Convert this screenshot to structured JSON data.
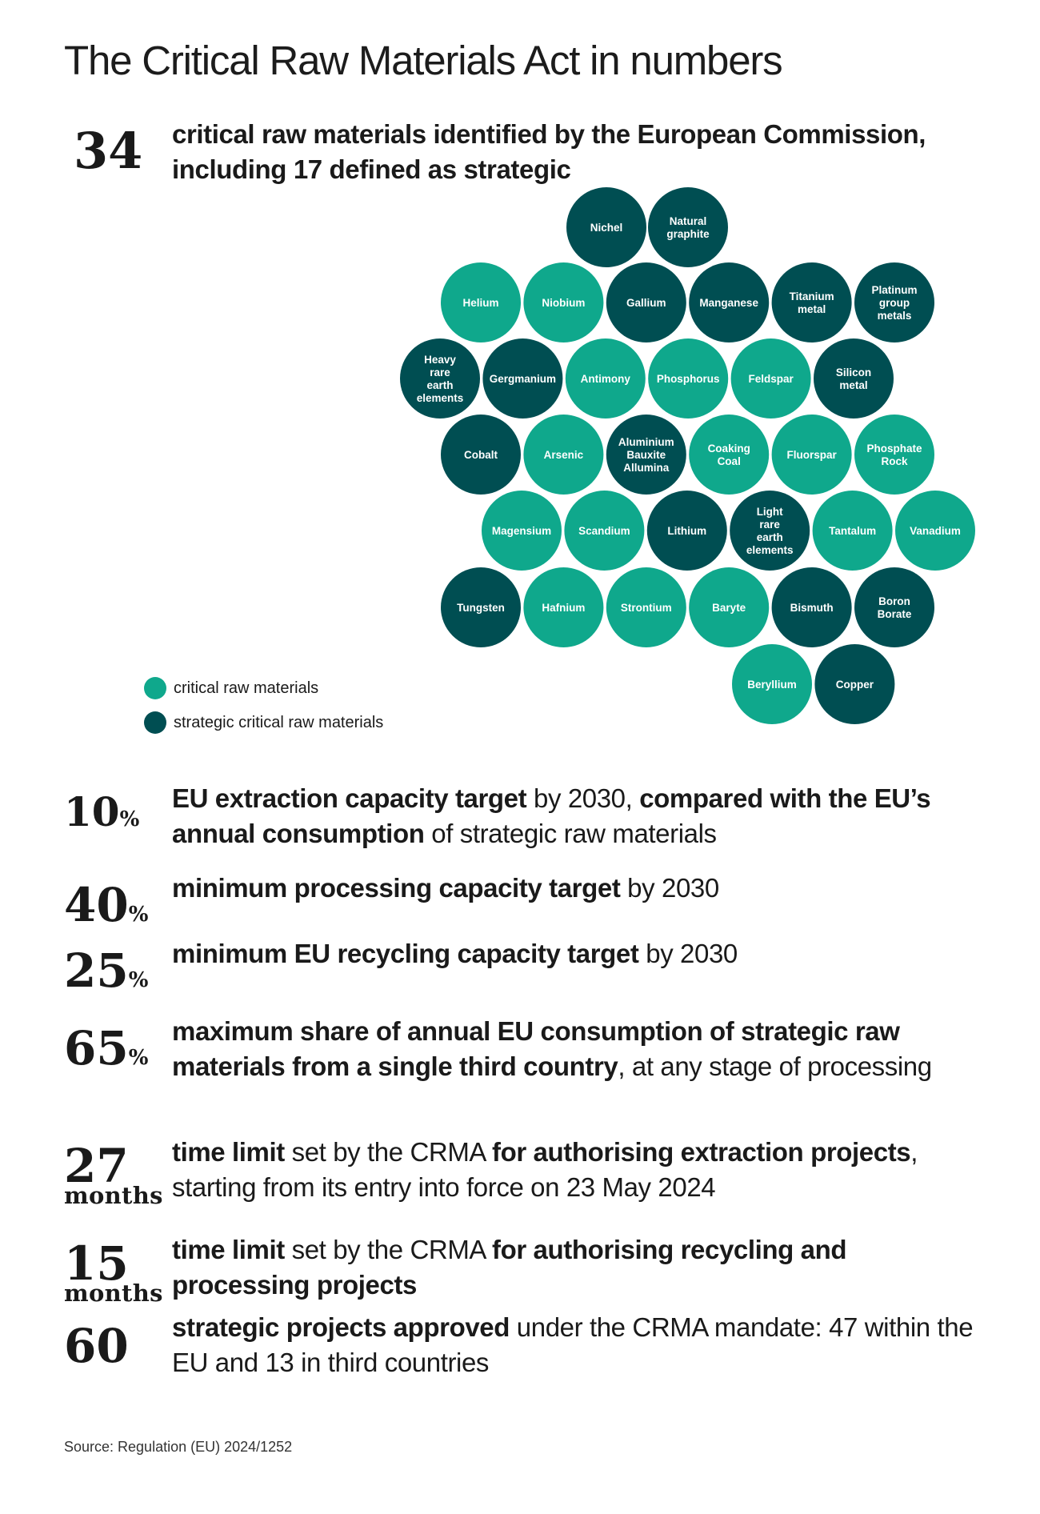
{
  "title": "The Critical Raw Materials Act in numbers",
  "colors": {
    "critical": "#0fa88c",
    "strategic": "#004e52",
    "bubble_text": "#ffffff"
  },
  "intro": {
    "number": "34",
    "line1": "critical raw materials identified by the European Commission,",
    "line2": "including 17 defined as strategic"
  },
  "materials": [
    {
      "name": "Nichel",
      "type": "strategic",
      "row": 0,
      "col": 0
    },
    {
      "name": "Natural graphite",
      "type": "strategic",
      "row": 0,
      "col": 1
    },
    {
      "name": "Helium",
      "type": "critical",
      "row": 1,
      "col": 0
    },
    {
      "name": "Niobium",
      "type": "critical",
      "row": 1,
      "col": 1
    },
    {
      "name": "Gallium",
      "type": "strategic",
      "row": 1,
      "col": 2
    },
    {
      "name": "Manganese",
      "type": "strategic",
      "row": 1,
      "col": 3
    },
    {
      "name": "Titanium metal",
      "type": "strategic",
      "row": 1,
      "col": 4
    },
    {
      "name": "Platinum group metals",
      "type": "strategic",
      "row": 1,
      "col": 5
    },
    {
      "name": "Heavy rare earth elements",
      "type": "strategic",
      "row": 2,
      "col": 0
    },
    {
      "name": "Gergmanium",
      "type": "strategic",
      "row": 2,
      "col": 1
    },
    {
      "name": "Antimony",
      "type": "critical",
      "row": 2,
      "col": 2
    },
    {
      "name": "Phosphorus",
      "type": "critical",
      "row": 2,
      "col": 3
    },
    {
      "name": "Feldspar",
      "type": "critical",
      "row": 2,
      "col": 4
    },
    {
      "name": "Silicon metal",
      "type": "strategic",
      "row": 2,
      "col": 5
    },
    {
      "name": "Cobalt",
      "type": "strategic",
      "row": 3,
      "col": 0
    },
    {
      "name": "Arsenic",
      "type": "critical",
      "row": 3,
      "col": 1
    },
    {
      "name": "Aluminium Bauxite Allumina",
      "type": "strategic",
      "row": 3,
      "col": 2
    },
    {
      "name": "Coaking Coal",
      "type": "critical",
      "row": 3,
      "col": 3
    },
    {
      "name": "Fluorspar",
      "type": "critical",
      "row": 3,
      "col": 4
    },
    {
      "name": "Phosphate Rock",
      "type": "critical",
      "row": 3,
      "col": 5
    },
    {
      "name": "Magensium",
      "type": "critical",
      "row": 4,
      "col": 0
    },
    {
      "name": "Scandium",
      "type": "critical",
      "row": 4,
      "col": 1
    },
    {
      "name": "Lithium",
      "type": "strategic",
      "row": 4,
      "col": 2
    },
    {
      "name": "Light rare earth elements",
      "type": "strategic",
      "row": 4,
      "col": 3
    },
    {
      "name": "Tantalum",
      "type": "critical",
      "row": 4,
      "col": 4
    },
    {
      "name": "Vanadium",
      "type": "critical",
      "row": 4,
      "col": 5
    },
    {
      "name": "Tungsten",
      "type": "strategic",
      "row": 5,
      "col": 0
    },
    {
      "name": "Hafnium",
      "type": "critical",
      "row": 5,
      "col": 1
    },
    {
      "name": "Strontium",
      "type": "critical",
      "row": 5,
      "col": 2
    },
    {
      "name": "Baryte",
      "type": "critical",
      "row": 5,
      "col": 3
    },
    {
      "name": "Bismuth",
      "type": "strategic",
      "row": 5,
      "col": 4
    },
    {
      "name": "Boron Borate",
      "type": "strategic",
      "row": 5,
      "col": 5
    },
    {
      "name": "Beryllium",
      "type": "critical",
      "row": 6,
      "col": 0
    },
    {
      "name": "Copper",
      "type": "strategic",
      "row": 6,
      "col": 1
    }
  ],
  "legend": {
    "critical_label": "critical raw materials",
    "strategic_label": "strategic critical raw materials"
  },
  "stats": [
    {
      "number": "10",
      "unit": "%",
      "line1": [
        {
          "t": "EU extraction capacity target",
          "b": true
        },
        {
          "t": " by 2030, ",
          "b": false
        },
        {
          "t": "compared with the EU’s",
          "b": true
        }
      ],
      "line2": [
        {
          "t": "annual consumption",
          "b": true
        },
        {
          "t": " of strategic raw materials",
          "b": false
        }
      ]
    },
    {
      "number": "40",
      "unit": "%",
      "line1": [
        {
          "t": "minimum processing capacity target",
          "b": true
        },
        {
          "t": " by 2030",
          "b": false
        }
      ],
      "line2": []
    },
    {
      "number": "25",
      "unit": "%",
      "line1": [
        {
          "t": "minimum EU recycling capacity target",
          "b": true
        },
        {
          "t": " by 2030",
          "b": false
        }
      ],
      "line2": []
    },
    {
      "number": "65",
      "unit": "%",
      "line1": [
        {
          "t": "maximum share of annual EU consumption of strategic raw",
          "b": true
        }
      ],
      "line2": [
        {
          "t": "materials from a single third country",
          "b": true
        },
        {
          "t": ", at any stage of processing",
          "b": false
        }
      ]
    },
    {
      "number": "27",
      "unit": "months",
      "line1": [
        {
          "t": "time limit",
          "b": true
        },
        {
          "t": " set by the CRMA ",
          "b": false
        },
        {
          "t": "for authorising extraction projects",
          "b": true
        },
        {
          "t": ",",
          "b": false
        }
      ],
      "line2": [
        {
          "t": "starting from its entry into force on 23 May 2024",
          "b": false
        }
      ]
    },
    {
      "number": "15",
      "unit": "months",
      "line1": [
        {
          "t": "time limit",
          "b": true
        },
        {
          "t": " set by the CRMA ",
          "b": false
        },
        {
          "t": "for authorising recycling and",
          "b": true
        }
      ],
      "line2": [
        {
          "t": "processing projects",
          "b": true
        }
      ]
    },
    {
      "number": "60",
      "unit": "",
      "line1": [
        {
          "t": "strategic projects approved",
          "b": true
        },
        {
          "t": " under the CRMA mandate: 47 within the",
          "b": false
        }
      ],
      "line2": [
        {
          "t": "EU and 13 in third countries",
          "b": false
        }
      ]
    }
  ],
  "source": "Source: Regulation (EU) 2024/1252"
}
